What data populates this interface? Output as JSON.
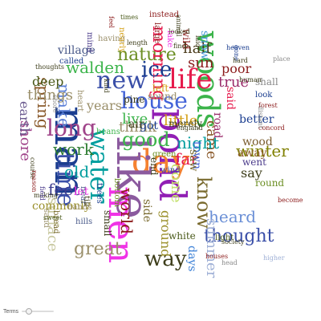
{
  "controls": {
    "terms_label": "Terms",
    "terms_level": 0.15
  },
  "words": [
    {
      "t": "woods",
      "c": "#3cb44b"
    },
    {
      "t": "house",
      "c": "#4363d8"
    },
    {
      "t": "life",
      "c": "#e6194b"
    },
    {
      "t": "pond",
      "c": "#911eb4"
    },
    {
      "t": "man",
      "c": "#1a3d8f"
    },
    {
      "t": "day",
      "c": "#f58231"
    },
    {
      "t": "like",
      "c": "#8b5a9e"
    },
    {
      "t": "men",
      "c": "#f032e6"
    },
    {
      "t": "water",
      "c": "#009e9e"
    },
    {
      "t": "time",
      "c": "#3a4fa8"
    },
    {
      "t": "long",
      "c": "#a0448a"
    },
    {
      "t": "new",
      "c": "#3a4fa8"
    },
    {
      "t": "way",
      "c": "#3d3d1a"
    },
    {
      "t": "know",
      "c": "#7a6b2f"
    },
    {
      "t": "good",
      "c": "#3cb44b"
    },
    {
      "t": "nature",
      "c": "#6b8e23"
    },
    {
      "t": "morning",
      "c": "#e6194b"
    },
    {
      "t": "came",
      "c": "#8b5a2b"
    },
    {
      "t": "ice",
      "c": "#1a3d8f"
    },
    {
      "t": "walden",
      "c": "#3cb44b"
    },
    {
      "t": "make",
      "c": "#5b7fd6"
    },
    {
      "t": "spring",
      "c": "#8a5a2b"
    },
    {
      "t": "shore",
      "c": "#a0448a"
    },
    {
      "t": "work",
      "c": "#2e7d32"
    },
    {
      "t": "old",
      "c": "#009e9e"
    },
    {
      "t": "great",
      "c": "#9a8f6a"
    },
    {
      "t": "thought",
      "c": "#3a4fa8"
    },
    {
      "t": "heard",
      "c": "#6a8fd6"
    },
    {
      "t": "world",
      "c": "#8b1a1a"
    },
    {
      "t": "ground",
      "c": "#9a8f2a"
    },
    {
      "t": "summer",
      "c": "#9fb0d6"
    },
    {
      "t": "winter",
      "c": "#808000"
    },
    {
      "t": "night",
      "c": "#009e9e"
    },
    {
      "t": "think",
      "c": "#9a8f6a"
    },
    {
      "t": "little",
      "c": "#d4a017"
    },
    {
      "t": "far",
      "c": "#e6194b"
    },
    {
      "t": "come",
      "c": "#c3e06b"
    },
    {
      "t": "wood",
      "c": "#7a5c2e"
    },
    {
      "t": "surface",
      "c": "#c8c8a0"
    },
    {
      "t": "feet",
      "c": "#3d3d8f"
    },
    {
      "t": "earth",
      "c": "#6b5b8f"
    },
    {
      "t": "things",
      "c": "#9a8f6a"
    },
    {
      "t": "deep",
      "c": "#4a5a1a"
    },
    {
      "t": "village",
      "c": "#4a5a8a"
    },
    {
      "t": "sun",
      "c": "#8b1a1a"
    },
    {
      "t": "half",
      "c": "#4a3a1a"
    },
    {
      "t": "poor",
      "c": "#8b1a1a"
    },
    {
      "t": "true",
      "c": "#9a2a6a"
    },
    {
      "t": "say",
      "c": "#3d3d1a"
    },
    {
      "t": "better",
      "c": "#1a3d8f"
    },
    {
      "t": "days",
      "c": "#3a7fd6"
    },
    {
      "t": "snow",
      "c": "#4a9ad6"
    },
    {
      "t": "said",
      "c": "#e6194b"
    },
    {
      "t": "live",
      "c": "#3cb44b"
    },
    {
      "t": "got",
      "c": "#1a3d8f"
    },
    {
      "t": "air",
      "c": "#3d3d1a"
    },
    {
      "t": "years",
      "c": "#9a8f6a"
    },
    {
      "t": "let",
      "c": "#f032e6"
    },
    {
      "t": "commonly",
      "c": "#9a8f2a"
    },
    {
      "t": "went",
      "c": "#4a3a8a"
    },
    {
      "t": "away",
      "c": "#8b5a2b"
    },
    {
      "t": "round",
      "c": "#6b8e23"
    },
    {
      "t": "town",
      "c": "#4363d8"
    },
    {
      "t": "saw",
      "c": "#7a6b2f"
    },
    {
      "t": "small",
      "c": "#3d3d1a"
    },
    {
      "t": "white",
      "c": "#4a5a1a"
    },
    {
      "t": "sound",
      "c": "#9a8f6a"
    },
    {
      "t": "side",
      "c": "#7a6b2f"
    },
    {
      "t": "end",
      "c": "#3d3d1a"
    },
    {
      "t": "pine",
      "c": "#3d3d1a"
    },
    {
      "t": "left",
      "c": "#d4a017"
    },
    {
      "t": "road",
      "c": "#9a2a6a"
    },
    {
      "t": "shall",
      "c": "#8a8a8a"
    },
    {
      "t": "look",
      "c": "#1a3d8f"
    },
    {
      "t": "merely",
      "c": "#3d3d1a"
    },
    {
      "t": "green",
      "c": "#6b8e23"
    },
    {
      "t": "wind",
      "c": "#3a4fa8"
    },
    {
      "t": "wild",
      "c": "#8b1a1a"
    },
    {
      "t": "light",
      "c": "#4a5a1a"
    },
    {
      "t": "bottom",
      "c": "#6b8e23"
    },
    {
      "t": "heart",
      "c": "#9a8f6a"
    },
    {
      "t": "near",
      "c": "#4a5a8a"
    },
    {
      "t": "till",
      "c": "#3d3d1a"
    },
    {
      "t": "sand",
      "c": "#9a8f6a"
    },
    {
      "t": "bread",
      "c": "#7a6b2f"
    },
    {
      "t": "hands",
      "c": "#9a8f6a"
    },
    {
      "t": "hills",
      "c": "#4a5a8a"
    },
    {
      "t": "called",
      "c": "#1a3d8f"
    },
    {
      "t": "having",
      "c": "#9a8f6a"
    },
    {
      "t": "nearly",
      "c": "#d4a017"
    },
    {
      "t": "instead",
      "c": "#8b1a1a"
    },
    {
      "t": "lake",
      "c": "#f032e6"
    },
    {
      "t": "beans",
      "c": "#3cb44b"
    },
    {
      "t": "trees",
      "c": "#1a3d8f"
    },
    {
      "t": "large",
      "c": "#8b1a1a"
    },
    {
      "t": "thoughts",
      "c": "#3d3d1a"
    },
    {
      "t": "mind",
      "c": "#4a3a8a"
    },
    {
      "t": "forest",
      "c": "#8b1a1a"
    },
    {
      "t": "concord",
      "c": "#8b1a1a"
    },
    {
      "t": "distant",
      "c": "#8a8a8a"
    },
    {
      "t": "shore",
      "c": "#8a8a8a"
    },
    {
      "t": "making",
      "c": "#3d3d1a"
    },
    {
      "t": "houses",
      "c": "#8b1a1a"
    },
    {
      "t": "kind",
      "c": "#3d3d1a"
    },
    {
      "t": "higher",
      "c": "#9fb0d6"
    },
    {
      "t": "head",
      "c": "#8a8a8a"
    },
    {
      "t": "society",
      "c": "#3d3d1a"
    },
    {
      "t": "course",
      "c": "#3d3d1a"
    },
    {
      "t": "sweet",
      "c": "#4a5a1a"
    },
    {
      "t": "field",
      "c": "#4a3a8a"
    },
    {
      "t": "reason",
      "c": "#8b1a1a"
    },
    {
      "t": "become",
      "c": "#8b1a1a"
    },
    {
      "t": "human",
      "c": "#3d3d1a"
    },
    {
      "t": "gone",
      "c": "#1a3d8f"
    },
    {
      "t": "heaven",
      "c": "#1a3d8f"
    },
    {
      "t": "laid",
      "c": "#3d3d1a"
    },
    {
      "t": "hard",
      "c": "#3d3d1a"
    },
    {
      "t": "length",
      "c": "#3d3d1a"
    },
    {
      "t": "looked",
      "c": "#3d3d1a"
    },
    {
      "t": "feel",
      "c": "#8b1a1a"
    },
    {
      "t": "animal",
      "c": "#3d3d1a"
    },
    {
      "t": "england",
      "c": "#3d3d1a"
    },
    {
      "t": "times",
      "c": "#4a5a1a"
    },
    {
      "t": "find",
      "c": "#3d3d1a"
    },
    {
      "t": "place",
      "c": "#8a8a8a"
    },
    {
      "t": "produce",
      "c": "#3d3d1a"
    }
  ]
}
